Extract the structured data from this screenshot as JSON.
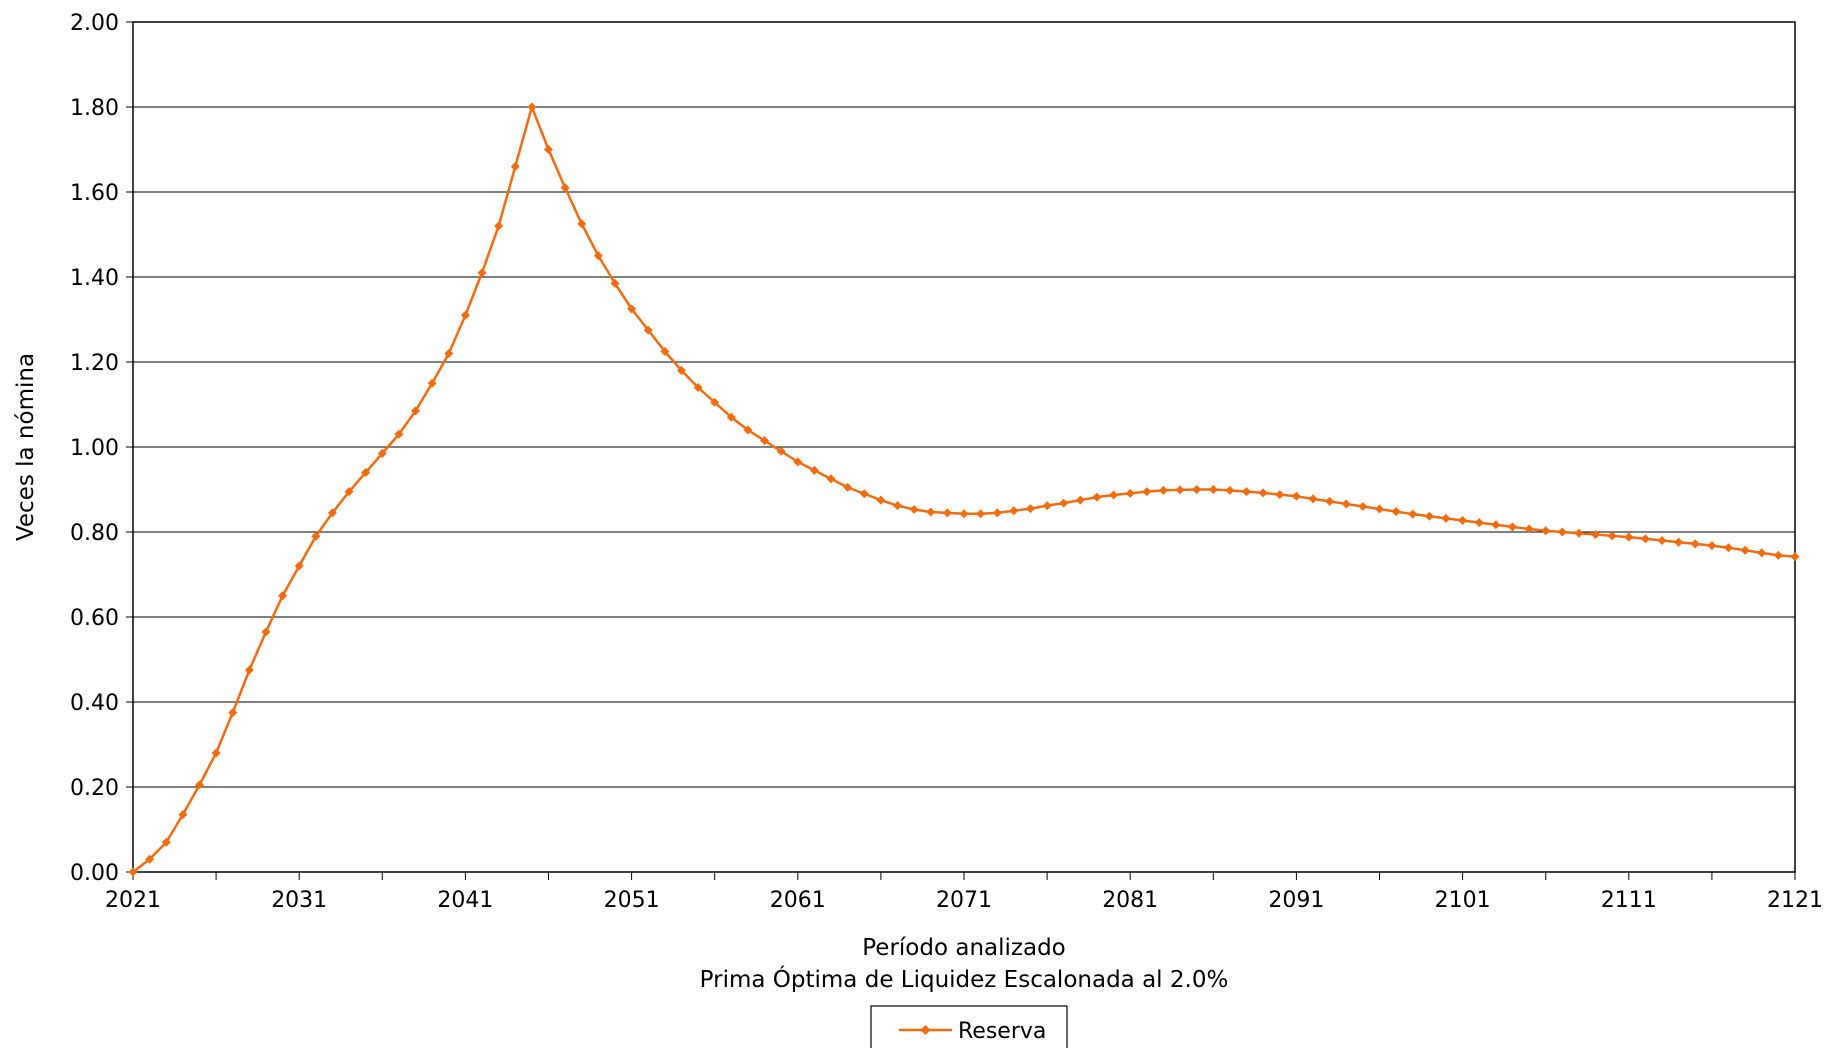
{
  "chart_data": {
    "type": "line",
    "xlabel": "Período analizado",
    "subtitle": "Prima Óptima de Liquidez Escalonada al 2.0%",
    "ylabel": "Veces la nómina",
    "xlim": [
      2021,
      2121
    ],
    "ylim": [
      0,
      2.0
    ],
    "x_ticks": [
      "2021",
      "2031",
      "2041",
      "2051",
      "2061",
      "2071",
      "2081",
      "2091",
      "2101",
      "2111",
      "2121"
    ],
    "y_ticks": [
      "0.00",
      "0.20",
      "0.40",
      "0.60",
      "0.80",
      "1.00",
      "1.20",
      "1.40",
      "1.60",
      "1.80",
      "2.00"
    ],
    "grid": true,
    "legend_position": "bottom-center",
    "series": [
      {
        "name": "Reserva",
        "color": "#f26b0f",
        "marker": "diamond",
        "x": [
          2021,
          2022,
          2023,
          2024,
          2025,
          2026,
          2027,
          2028,
          2029,
          2030,
          2031,
          2032,
          2033,
          2034,
          2035,
          2036,
          2037,
          2038,
          2039,
          2040,
          2041,
          2042,
          2043,
          2044,
          2045,
          2046,
          2047,
          2048,
          2049,
          2050,
          2051,
          2052,
          2053,
          2054,
          2055,
          2056,
          2057,
          2058,
          2059,
          2060,
          2061,
          2062,
          2063,
          2064,
          2065,
          2066,
          2067,
          2068,
          2069,
          2070,
          2071,
          2072,
          2073,
          2074,
          2075,
          2076,
          2077,
          2078,
          2079,
          2080,
          2081,
          2082,
          2083,
          2084,
          2085,
          2086,
          2087,
          2088,
          2089,
          2090,
          2091,
          2092,
          2093,
          2094,
          2095,
          2096,
          2097,
          2098,
          2099,
          2100,
          2101,
          2102,
          2103,
          2104,
          2105,
          2106,
          2107,
          2108,
          2109,
          2110,
          2111,
          2112,
          2113,
          2114,
          2115,
          2116,
          2117,
          2118,
          2119,
          2120,
          2121
        ],
        "values": [
          0.0,
          0.03,
          0.07,
          0.135,
          0.205,
          0.28,
          0.375,
          0.475,
          0.565,
          0.65,
          0.72,
          0.79,
          0.845,
          0.895,
          0.94,
          0.985,
          1.03,
          1.085,
          1.15,
          1.22,
          1.31,
          1.41,
          1.52,
          1.66,
          1.8,
          1.7,
          1.61,
          1.525,
          1.45,
          1.385,
          1.325,
          1.275,
          1.225,
          1.18,
          1.14,
          1.105,
          1.07,
          1.04,
          1.015,
          0.99,
          0.965,
          0.945,
          0.925,
          0.905,
          0.89,
          0.875,
          0.862,
          0.853,
          0.847,
          0.845,
          0.843,
          0.843,
          0.845,
          0.85,
          0.855,
          0.862,
          0.868,
          0.875,
          0.882,
          0.887,
          0.891,
          0.895,
          0.898,
          0.899,
          0.9,
          0.9,
          0.898,
          0.895,
          0.892,
          0.888,
          0.884,
          0.878,
          0.872,
          0.866,
          0.86,
          0.854,
          0.848,
          0.842,
          0.837,
          0.832,
          0.827,
          0.822,
          0.817,
          0.812,
          0.807,
          0.803,
          0.8,
          0.797,
          0.794,
          0.791,
          0.788,
          0.784,
          0.78,
          0.776,
          0.772,
          0.768,
          0.763,
          0.757,
          0.751,
          0.745,
          0.742
        ]
      }
    ]
  }
}
